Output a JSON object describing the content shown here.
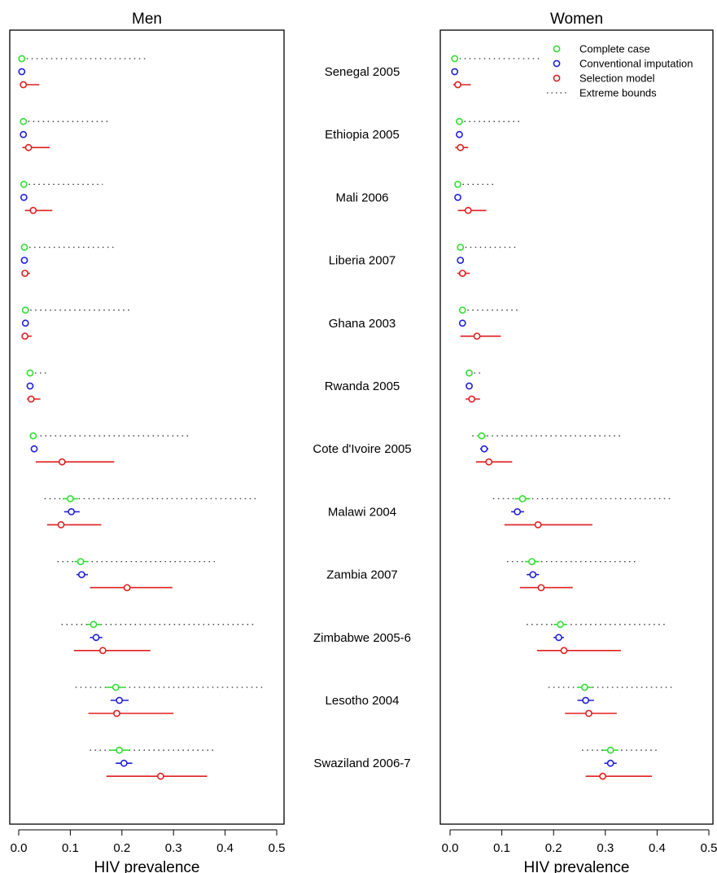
{
  "chart_data": {
    "type": "scatter",
    "panels": [
      {
        "title": "Men",
        "xlabel": "HIV prevalence",
        "xlim": [
          0,
          0.5
        ],
        "xticks": [
          "0.0",
          "0.1",
          "0.2",
          "0.3",
          "0.4",
          "0.5"
        ],
        "rows": [
          {
            "country": "Senegal 2005",
            "complete": {
              "est": 0.006,
              "lo": 0.004,
              "hi": 0.008
            },
            "bounds": [
              0.006,
              0.245
            ],
            "conventional": {
              "est": 0.006,
              "lo": 0.004,
              "hi": 0.008
            },
            "selection": {
              "est": 0.009,
              "lo": 0.004,
              "hi": 0.04
            }
          },
          {
            "country": "Ethiopia 2005",
            "complete": {
              "est": 0.009,
              "lo": 0.006,
              "hi": 0.012
            },
            "bounds": [
              0.009,
              0.173
            ],
            "conventional": {
              "est": 0.009,
              "lo": 0.006,
              "hi": 0.012
            },
            "selection": {
              "est": 0.019,
              "lo": 0.007,
              "hi": 0.06
            }
          },
          {
            "country": "Mali 2006",
            "complete": {
              "est": 0.01,
              "lo": 0.007,
              "hi": 0.013
            },
            "bounds": [
              0.01,
              0.163
            ],
            "conventional": {
              "est": 0.01,
              "lo": 0.007,
              "hi": 0.013
            },
            "selection": {
              "est": 0.028,
              "lo": 0.012,
              "hi": 0.065
            }
          },
          {
            "country": "Liberia 2007",
            "complete": {
              "est": 0.011,
              "lo": 0.008,
              "hi": 0.014
            },
            "bounds": [
              0.011,
              0.185
            ],
            "conventional": {
              "est": 0.011,
              "lo": 0.008,
              "hi": 0.014
            },
            "selection": {
              "est": 0.012,
              "lo": 0.006,
              "hi": 0.022
            }
          },
          {
            "country": "Ghana 2003",
            "complete": {
              "est": 0.013,
              "lo": 0.01,
              "hi": 0.016
            },
            "bounds": [
              0.013,
              0.22
            ],
            "conventional": {
              "est": 0.013,
              "lo": 0.01,
              "hi": 0.016
            },
            "selection": {
              "est": 0.012,
              "lo": 0.006,
              "hi": 0.025
            }
          },
          {
            "country": "Rwanda 2005",
            "complete": {
              "est": 0.022,
              "lo": 0.018,
              "hi": 0.026
            },
            "bounds": [
              0.022,
              0.06
            ],
            "conventional": {
              "est": 0.022,
              "lo": 0.018,
              "hi": 0.026
            },
            "selection": {
              "est": 0.024,
              "lo": 0.016,
              "hi": 0.042
            }
          },
          {
            "country": "Cote d'Ivoire 2005",
            "complete": {
              "est": 0.028,
              "lo": 0.022,
              "hi": 0.035
            },
            "bounds": [
              0.023,
              0.33
            ],
            "conventional": {
              "est": 0.03,
              "lo": 0.024,
              "hi": 0.036
            },
            "selection": {
              "est": 0.084,
              "lo": 0.033,
              "hi": 0.185
            }
          },
          {
            "country": "Malawi 2004",
            "complete": {
              "est": 0.1,
              "lo": 0.085,
              "hi": 0.115
            },
            "bounds": [
              0.05,
              0.46
            ],
            "conventional": {
              "est": 0.102,
              "lo": 0.088,
              "hi": 0.118
            },
            "selection": {
              "est": 0.082,
              "lo": 0.055,
              "hi": 0.16
            }
          },
          {
            "country": "Zambia 2007",
            "complete": {
              "est": 0.12,
              "lo": 0.108,
              "hi": 0.135
            },
            "bounds": [
              0.075,
              0.38
            ],
            "conventional": {
              "est": 0.122,
              "lo": 0.112,
              "hi": 0.134
            },
            "selection": {
              "est": 0.21,
              "lo": 0.138,
              "hi": 0.298
            }
          },
          {
            "country": "Zimbabwe 2005-6",
            "complete": {
              "est": 0.145,
              "lo": 0.132,
              "hi": 0.16
            },
            "bounds": [
              0.083,
              0.46
            ],
            "conventional": {
              "est": 0.15,
              "lo": 0.138,
              "hi": 0.162
            },
            "selection": {
              "est": 0.163,
              "lo": 0.107,
              "hi": 0.255
            }
          },
          {
            "country": "Lesotho 2004",
            "complete": {
              "est": 0.188,
              "lo": 0.168,
              "hi": 0.208
            },
            "bounds": [
              0.11,
              0.477
            ],
            "conventional": {
              "est": 0.195,
              "lo": 0.178,
              "hi": 0.213
            },
            "selection": {
              "est": 0.19,
              "lo": 0.135,
              "hi": 0.3
            }
          },
          {
            "country": "Swaziland 2006-7",
            "complete": {
              "est": 0.195,
              "lo": 0.175,
              "hi": 0.215
            },
            "bounds": [
              0.138,
              0.38
            ],
            "conventional": {
              "est": 0.204,
              "lo": 0.188,
              "hi": 0.22
            },
            "selection": {
              "est": 0.275,
              "lo": 0.17,
              "hi": 0.365
            }
          }
        ]
      },
      {
        "title": "Women",
        "xlabel": "HIV prevalence",
        "xlim": [
          0,
          0.5
        ],
        "xticks": [
          "0.0",
          "0.1",
          "0.2",
          "0.3",
          "0.4",
          "0.5"
        ],
        "rows": [
          {
            "country": "Senegal 2005",
            "complete": {
              "est": 0.009,
              "lo": 0.006,
              "hi": 0.012
            },
            "bounds": [
              0.009,
              0.173
            ],
            "conventional": {
              "est": 0.009,
              "lo": 0.006,
              "hi": 0.012
            },
            "selection": {
              "est": 0.015,
              "lo": 0.006,
              "hi": 0.04
            }
          },
          {
            "country": "Ethiopia 2005",
            "complete": {
              "est": 0.018,
              "lo": 0.014,
              "hi": 0.022
            },
            "bounds": [
              0.018,
              0.138
            ],
            "conventional": {
              "est": 0.018,
              "lo": 0.014,
              "hi": 0.022
            },
            "selection": {
              "est": 0.02,
              "lo": 0.01,
              "hi": 0.035
            }
          },
          {
            "country": "Mali 2006",
            "complete": {
              "est": 0.015,
              "lo": 0.011,
              "hi": 0.019
            },
            "bounds": [
              0.015,
              0.085
            ],
            "conventional": {
              "est": 0.015,
              "lo": 0.011,
              "hi": 0.019
            },
            "selection": {
              "est": 0.035,
              "lo": 0.015,
              "hi": 0.07
            }
          },
          {
            "country": "Liberia 2007",
            "complete": {
              "est": 0.02,
              "lo": 0.016,
              "hi": 0.024
            },
            "bounds": [
              0.02,
              0.13
            ],
            "conventional": {
              "est": 0.02,
              "lo": 0.016,
              "hi": 0.024
            },
            "selection": {
              "est": 0.024,
              "lo": 0.014,
              "hi": 0.038
            }
          },
          {
            "country": "Ghana 2003",
            "complete": {
              "est": 0.024,
              "lo": 0.019,
              "hi": 0.029
            },
            "bounds": [
              0.024,
              0.135
            ],
            "conventional": {
              "est": 0.024,
              "lo": 0.019,
              "hi": 0.029
            },
            "selection": {
              "est": 0.052,
              "lo": 0.02,
              "hi": 0.098
            }
          },
          {
            "country": "Rwanda 2005",
            "complete": {
              "est": 0.037,
              "lo": 0.032,
              "hi": 0.042
            },
            "bounds": [
              0.037,
              0.063
            ],
            "conventional": {
              "est": 0.037,
              "lo": 0.032,
              "hi": 0.042
            },
            "selection": {
              "est": 0.042,
              "lo": 0.03,
              "hi": 0.058
            }
          },
          {
            "country": "Cote d'Ivoire 2005",
            "complete": {
              "est": 0.061,
              "lo": 0.053,
              "hi": 0.07
            },
            "bounds": [
              0.043,
              0.33
            ],
            "conventional": {
              "est": 0.066,
              "lo": 0.058,
              "hi": 0.074
            },
            "selection": {
              "est": 0.075,
              "lo": 0.05,
              "hi": 0.12
            }
          },
          {
            "country": "Malawi 2004",
            "complete": {
              "est": 0.14,
              "lo": 0.125,
              "hi": 0.155
            },
            "bounds": [
              0.083,
              0.43
            ],
            "conventional": {
              "est": 0.13,
              "lo": 0.118,
              "hi": 0.143
            },
            "selection": {
              "est": 0.17,
              "lo": 0.105,
              "hi": 0.275
            }
          },
          {
            "country": "Zambia 2007",
            "complete": {
              "est": 0.158,
              "lo": 0.145,
              "hi": 0.172
            },
            "bounds": [
              0.11,
              0.365
            ],
            "conventional": {
              "est": 0.16,
              "lo": 0.148,
              "hi": 0.172
            },
            "selection": {
              "est": 0.176,
              "lo": 0.135,
              "hi": 0.237
            }
          },
          {
            "country": "Zimbabwe 2005-6",
            "complete": {
              "est": 0.213,
              "lo": 0.2,
              "hi": 0.226
            },
            "bounds": [
              0.148,
              0.415
            ],
            "conventional": {
              "est": 0.21,
              "lo": 0.2,
              "hi": 0.22
            },
            "selection": {
              "est": 0.22,
              "lo": 0.168,
              "hi": 0.33
            }
          },
          {
            "country": "Lesotho 2004",
            "complete": {
              "est": 0.26,
              "lo": 0.245,
              "hi": 0.275
            },
            "bounds": [
              0.19,
              0.433
            ],
            "conventional": {
              "est": 0.262,
              "lo": 0.246,
              "hi": 0.278
            },
            "selection": {
              "est": 0.268,
              "lo": 0.222,
              "hi": 0.322
            }
          },
          {
            "country": "Swaziland 2006-7",
            "complete": {
              "est": 0.31,
              "lo": 0.295,
              "hi": 0.325
            },
            "bounds": [
              0.255,
              0.405
            ],
            "conventional": {
              "est": 0.31,
              "lo": 0.298,
              "hi": 0.322
            },
            "selection": {
              "est": 0.295,
              "lo": 0.262,
              "hi": 0.39
            }
          }
        ]
      }
    ],
    "legend": {
      "placement": "top-right",
      "panel": "Women",
      "entries": [
        {
          "key": "complete",
          "label": "Complete case",
          "color": "#33dd33",
          "style": "point"
        },
        {
          "key": "conventional",
          "label": "Conventional imputation",
          "color": "#1f1fdd",
          "style": "point"
        },
        {
          "key": "selection",
          "label": "Selection model",
          "color": "#e01f1f",
          "style": "point"
        },
        {
          "key": "bounds",
          "label": "Extreme bounds",
          "color": "#333333",
          "style": "dotted"
        }
      ]
    }
  }
}
